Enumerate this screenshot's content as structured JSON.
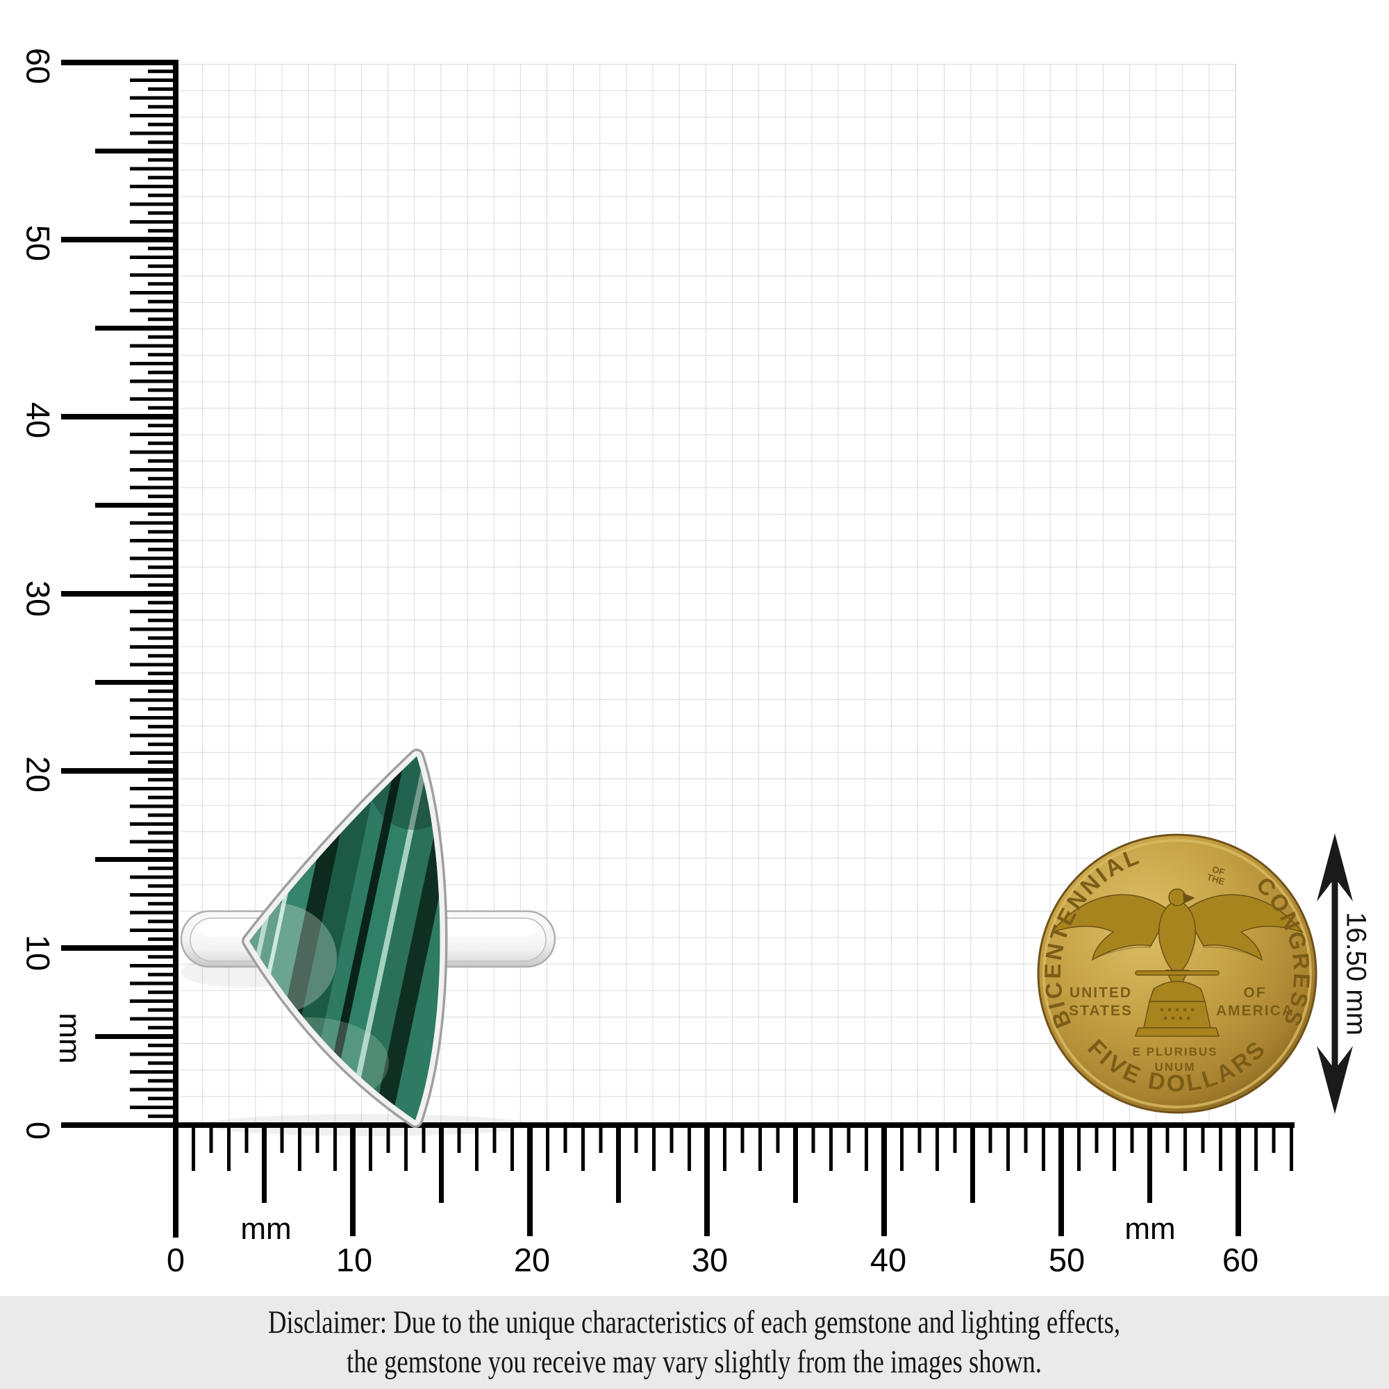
{
  "theme": {
    "ruler_color": "#000000",
    "grid_line": "#d9d9d9",
    "malachite_green": "#2f7a62",
    "malachite_dark": "#0d2b1f",
    "malachite_light": "#bfe3d2",
    "silver_band": "#ededed",
    "coin_gold": "#c2a044",
    "disclaimer_bg": "#eaeaea",
    "text_color": "#161616"
  },
  "rulers": {
    "vertical": {
      "labels": [
        "60",
        "50",
        "40",
        "30",
        "20",
        "10"
      ],
      "zero": "0",
      "unit": "mm"
    },
    "horizontal": {
      "labels": [
        "0",
        "10",
        "20",
        "30",
        "40",
        "50",
        "60"
      ],
      "unit": "mm"
    }
  },
  "coin": {
    "arc_left": "BICENTENNIAL",
    "arc_small_1": "OF",
    "arc_small_2": "THE",
    "arc_right": "CONGRESS",
    "left_line_1": "UNITED",
    "left_line_2": "STATES",
    "right_line_1": "OF",
    "right_line_2": "AMERICA",
    "motto_line_1": "E PLURIBUS",
    "motto_line_2": "UNUM",
    "denomination": "FIVE DOLLARS"
  },
  "measurement": {
    "label": "16.50 mm"
  },
  "disclaimer": {
    "line1": "Disclaimer: Due to the unique characteristics of each gemstone and lighting effects,",
    "line2": "the gemstone you receive may vary slightly from the images shown."
  }
}
